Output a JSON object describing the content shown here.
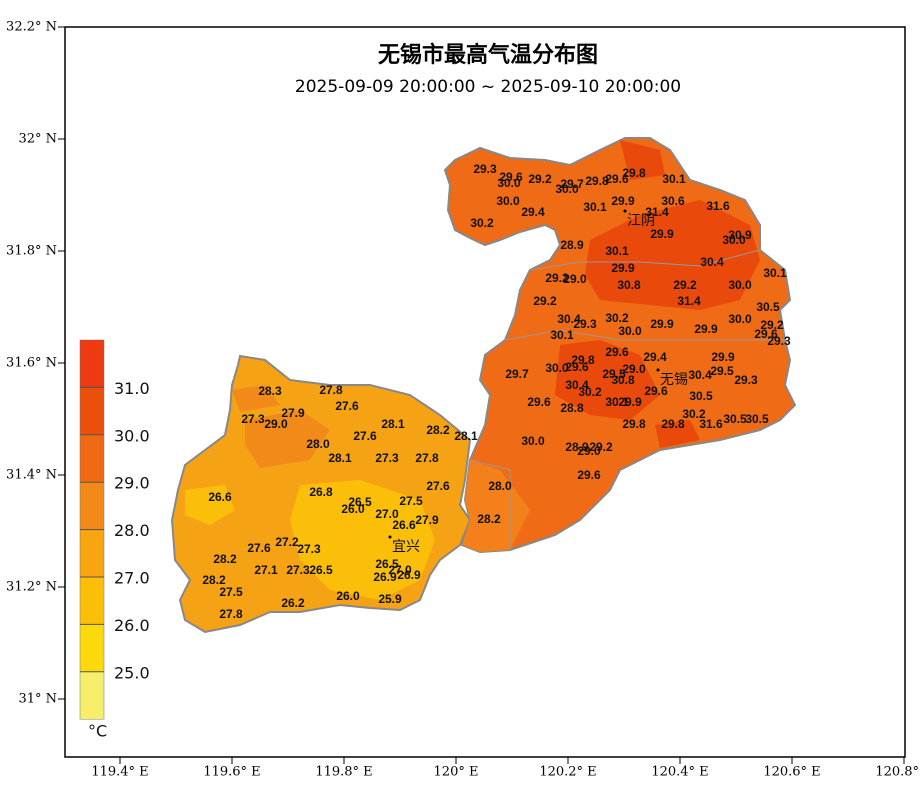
{
  "map": {
    "title": "无锡市最高气温分布图",
    "subtitle": "2025-09-09 20:00:00 ~ 2025-09-10 20:00:00",
    "lat_ticks": [
      {
        "value": 32.2,
        "label": "32.2° N"
      },
      {
        "value": 32.0,
        "label": "32° N"
      },
      {
        "value": 31.8,
        "label": "31.8° N"
      },
      {
        "value": 31.6,
        "label": "31.6° N"
      },
      {
        "value": 31.4,
        "label": "31.4° N"
      },
      {
        "value": 31.2,
        "label": "31.2° N"
      },
      {
        "value": 31.0,
        "label": "31° N"
      }
    ],
    "lon_ticks": [
      {
        "value": 119.4,
        "label": "119.4° E"
      },
      {
        "value": 119.6,
        "label": "119.6° E"
      },
      {
        "value": 119.8,
        "label": "119.8° E"
      },
      {
        "value": 120.0,
        "label": "120° E"
      },
      {
        "value": 120.2,
        "label": "120.2° E"
      },
      {
        "value": 120.4,
        "label": "120.4° E"
      },
      {
        "value": 120.6,
        "label": "120.6° E"
      },
      {
        "value": 120.8,
        "label": "120.8° E"
      }
    ],
    "cities": [
      "江阴",
      "无锡",
      "宜兴"
    ],
    "stations": [
      "29.3",
      "29.6",
      "30.0",
      "29.2",
      "29.7",
      "30.0",
      "29.8",
      "29.6",
      "29.8",
      "30.1",
      "30.0",
      "29.4",
      "30.2",
      "30.1",
      "29.9",
      "31.4",
      "30.6",
      "31.6",
      "29.9",
      "30.9",
      "30.0",
      "28.9",
      "30.1",
      "29.9",
      "30.4",
      "30.1",
      "29.2",
      "29.0",
      "30.8",
      "29.2",
      "30.0",
      "31.4",
      "29.2",
      "30.5",
      "30.4",
      "29.3",
      "30.2",
      "30.0",
      "29.9",
      "29.9",
      "30.0",
      "29.2",
      "29.6",
      "29.3",
      "30.1",
      "29.6",
      "29.4",
      "29.8",
      "29.9",
      "29.7",
      "30.0",
      "29.6",
      "29.0",
      "29.5",
      "30.8",
      "30.4",
      "29.5",
      "29.3",
      "30.4",
      "30.2",
      "29.6",
      "30.5",
      "29.6",
      "28.8",
      "30.1",
      "29.9",
      "30.2",
      "30.5",
      "30.5",
      "29.8",
      "29.8",
      "31.6",
      "30.0",
      "28.9",
      "29.2",
      "29.0",
      "29.6",
      "28.0",
      "28.2",
      "28.3",
      "27.8",
      "27.6",
      "27.3",
      "27.9",
      "29.0",
      "28.1",
      "28.2",
      "28.1",
      "27.6",
      "28.0",
      "28.1",
      "27.3",
      "27.8",
      "26.6",
      "26.8",
      "27.6",
      "26.5",
      "26.0",
      "27.5",
      "27.0",
      "26.6",
      "27.9",
      "27.2",
      "27.6",
      "27.3",
      "28.2",
      "27.1",
      "27.3",
      "26.5",
      "26.5",
      "27.0",
      "26.9",
      "26.9",
      "28.2",
      "27.5",
      "26.0",
      "26.2",
      "25.9",
      "27.8"
    ],
    "legend": {
      "labels": [
        "31.0",
        "30.0",
        "29.0",
        "28.0",
        "27.0",
        "26.0",
        "25.0"
      ],
      "unit": "°C",
      "colors": [
        "#ee3a10",
        "#eb4f0c",
        "#ef6a12",
        "#f38a18",
        "#f8a50f",
        "#fbbf08",
        "#fbd90a",
        "#f7ef6a"
      ]
    }
  }
}
